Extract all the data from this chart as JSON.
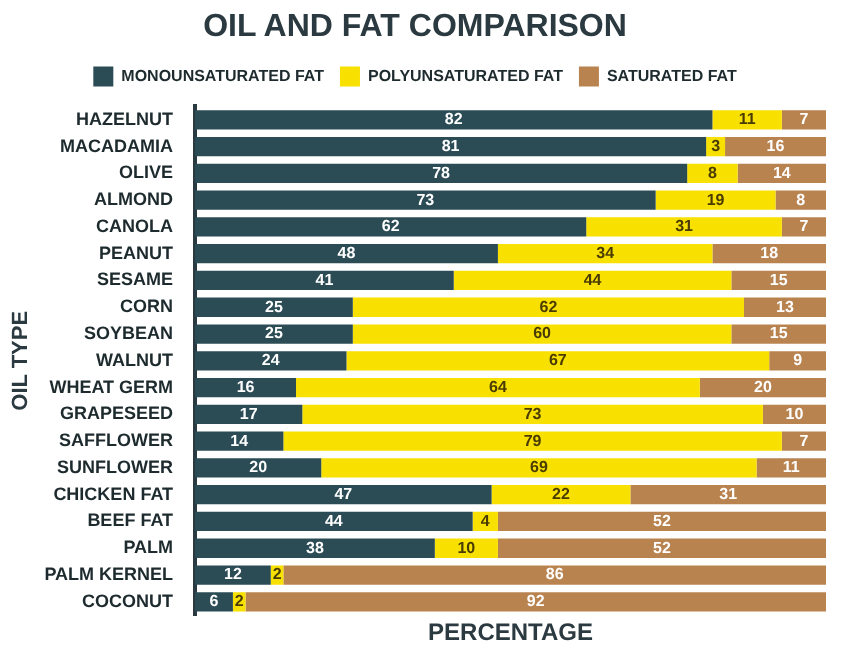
{
  "chart_data": {
    "type": "bar",
    "orientation": "horizontal",
    "stacked": true,
    "title": "OIL AND FAT COMPARISON",
    "xlabel": "PERCENTAGE",
    "ylabel": "OIL TYPE",
    "categories": [
      "HAZELNUT",
      "MACADAMIA",
      "OLIVE",
      "ALMOND",
      "CANOLA",
      "PEANUT",
      "SESAME",
      "CORN",
      "SOYBEAN",
      "WALNUT",
      "WHEAT GERM",
      "GRAPESEED",
      "SAFFLOWER",
      "SUNFLOWER",
      "CHICKEN FAT",
      "BEEF FAT",
      "PALM",
      "PALM KERNEL",
      "COCONUT"
    ],
    "series": [
      {
        "name": "MONOUNSATURATED FAT",
        "color": "#2b4c55",
        "values": [
          82,
          81,
          78,
          73,
          62,
          48,
          41,
          25,
          25,
          24,
          16,
          17,
          14,
          20,
          47,
          44,
          38,
          12,
          6
        ]
      },
      {
        "name": "POLYUNSATURATED FAT",
        "color": "#f8e000",
        "values": [
          11,
          3,
          8,
          19,
          31,
          34,
          44,
          62,
          60,
          67,
          64,
          73,
          79,
          69,
          22,
          4,
          10,
          2,
          2
        ]
      },
      {
        "name": "SATURATED FAT",
        "color": "#b9834f",
        "values": [
          7,
          16,
          14,
          8,
          7,
          18,
          15,
          13,
          15,
          9,
          20,
          10,
          7,
          11,
          31,
          52,
          52,
          86,
          92
        ]
      }
    ],
    "xlim": [
      0,
      100
    ],
    "tick_labels": "y",
    "grid": false,
    "legend": "top",
    "data_labels": true
  }
}
